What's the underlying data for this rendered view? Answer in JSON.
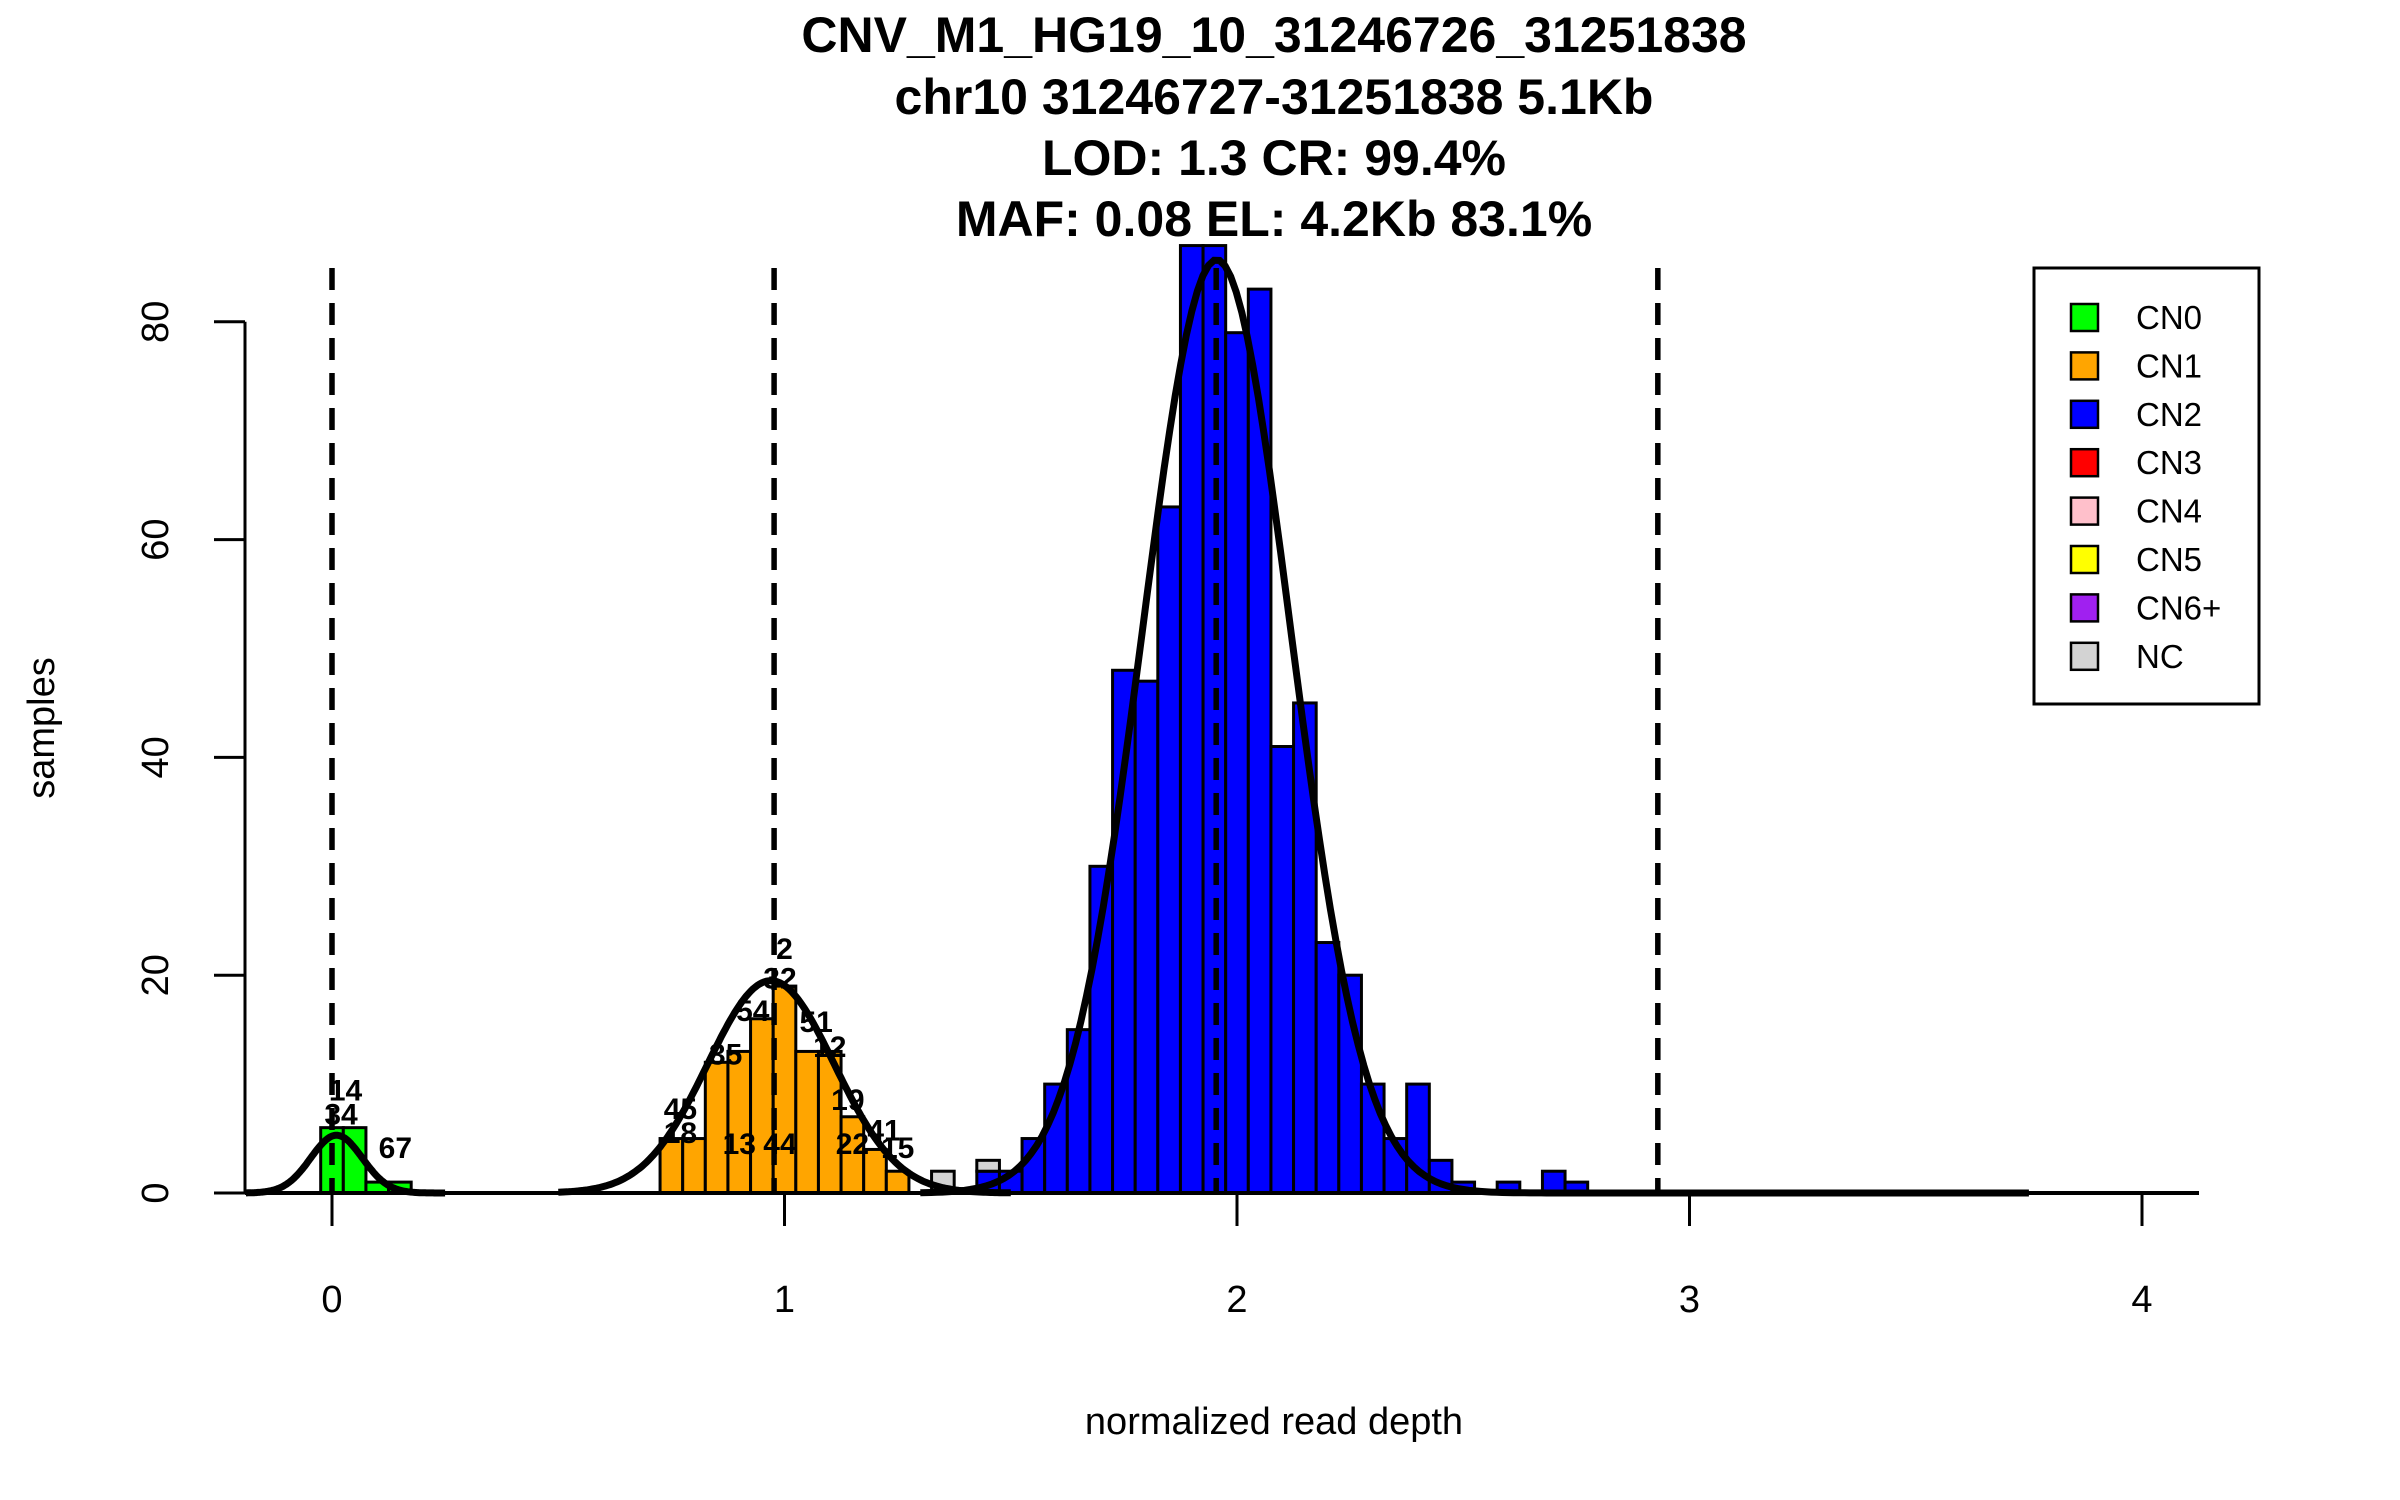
{
  "chart_data": {
    "type": "bar",
    "subtype": "stacked-histogram",
    "title_lines": [
      "CNV_M1_HG19_10_31246726_31251838",
      "chr10 31246727-31251838 5.1Kb",
      "LOD: 1.3 CR: 99.4%",
      "MAF: 0.08 EL: 4.2Kb 83.1%"
    ],
    "xlabel": "normalized read depth",
    "ylabel": "samples",
    "xlim": [
      -0.19,
      4.13
    ],
    "ylim": [
      0,
      87
    ],
    "xticks": [
      0,
      1,
      2,
      3,
      4
    ],
    "xtick_labels": [
      "0",
      "1",
      "2",
      "3",
      "4"
    ],
    "yticks": [
      0,
      20,
      40,
      60,
      80
    ],
    "ytick_labels": [
      "0",
      "20",
      "40",
      "60",
      "80"
    ],
    "bin_width": 0.05,
    "series": [
      {
        "name": "CN0",
        "color": "#00ff00",
        "bins": [
          [
            -0.025,
            6
          ],
          [
            0.025,
            6
          ],
          [
            0.075,
            1
          ],
          [
            0.125,
            1
          ]
        ]
      },
      {
        "name": "CN1",
        "color": "#ffa500",
        "bins": [
          [
            0.725,
            5
          ],
          [
            0.775,
            5
          ],
          [
            0.825,
            12
          ],
          [
            0.875,
            13
          ],
          [
            0.925,
            16
          ],
          [
            0.975,
            19
          ],
          [
            1.025,
            13
          ],
          [
            1.075,
            13
          ],
          [
            1.125,
            7
          ],
          [
            1.175,
            4
          ],
          [
            1.225,
            2
          ]
        ]
      },
      {
        "name": "CN2",
        "color": "#0000ff",
        "bins": [
          [
            1.425,
            2
          ],
          [
            1.475,
            2
          ],
          [
            1.525,
            5
          ],
          [
            1.575,
            10
          ],
          [
            1.625,
            15
          ],
          [
            1.675,
            30
          ],
          [
            1.725,
            48
          ],
          [
            1.775,
            47
          ],
          [
            1.825,
            63
          ],
          [
            1.875,
            87
          ],
          [
            1.925,
            87
          ],
          [
            1.975,
            79
          ],
          [
            2.025,
            83
          ],
          [
            2.075,
            41
          ],
          [
            2.125,
            45
          ],
          [
            2.175,
            23
          ],
          [
            2.225,
            20
          ],
          [
            2.275,
            10
          ],
          [
            2.325,
            5
          ],
          [
            2.375,
            10
          ],
          [
            2.425,
            3
          ],
          [
            2.475,
            1
          ],
          [
            2.575,
            1
          ],
          [
            2.675,
            2
          ],
          [
            2.725,
            1
          ]
        ]
      },
      {
        "name": "NC",
        "color": "#d3d3d3",
        "bins": [
          [
            1.325,
            2
          ],
          [
            1.425,
            1
          ]
        ]
      }
    ],
    "density_curves": [
      {
        "name": "CN0",
        "mean": 0.01,
        "sd": 0.057,
        "peak": 5.3,
        "range": [
          -0.19,
          0.25
        ]
      },
      {
        "name": "CN1",
        "mean": 0.97,
        "sd": 0.14,
        "peak": 19.5,
        "range": [
          0.5,
          1.5
        ]
      },
      {
        "name": "CN2",
        "mean": 1.955,
        "sd": 0.163,
        "peak": 85.7,
        "range": [
          1.3,
          3.75
        ]
      }
    ],
    "dashed_lines_x": [
      0.0,
      0.977,
      1.954,
      2.93
    ],
    "bar_annotations": [
      {
        "text": "14",
        "x": 0.03,
        "y": 8.5
      },
      {
        "text": "34",
        "x": 0.02,
        "y": 6.3
      },
      {
        "text": "67",
        "x": 0.14,
        "y": 3.2
      },
      {
        "text": "45",
        "x": 0.77,
        "y": 6.8
      },
      {
        "text": "18",
        "x": 0.77,
        "y": 4.6
      },
      {
        "text": "35",
        "x": 0.87,
        "y": 11.8
      },
      {
        "text": "13",
        "x": 0.9,
        "y": 3.6
      },
      {
        "text": "54",
        "x": 0.93,
        "y": 15.8
      },
      {
        "text": "32",
        "x": 0.99,
        "y": 18.8
      },
      {
        "text": "2",
        "x": 1.0,
        "y": 21.5
      },
      {
        "text": "44",
        "x": 0.99,
        "y": 3.6
      },
      {
        "text": "51",
        "x": 1.07,
        "y": 14.8
      },
      {
        "text": "12",
        "x": 1.1,
        "y": 12.5
      },
      {
        "text": "19",
        "x": 1.14,
        "y": 7.6
      },
      {
        "text": "22",
        "x": 1.15,
        "y": 3.6
      },
      {
        "text": "41",
        "x": 1.22,
        "y": 4.8
      },
      {
        "text": "15",
        "x": 1.25,
        "y": 3.2
      }
    ],
    "legend": {
      "position": "top-right",
      "entries": [
        {
          "label": "CN0",
          "color": "#00ff00"
        },
        {
          "label": "CN1",
          "color": "#ffa500"
        },
        {
          "label": "CN2",
          "color": "#0000ff"
        },
        {
          "label": "CN3",
          "color": "#ff0000"
        },
        {
          "label": "CN4",
          "color": "#ffc0cb"
        },
        {
          "label": "CN5",
          "color": "#ffff00"
        },
        {
          "label": "CN6+",
          "color": "#a020f0"
        },
        {
          "label": "NC",
          "color": "#d3d3d3"
        }
      ]
    },
    "grid": false
  }
}
